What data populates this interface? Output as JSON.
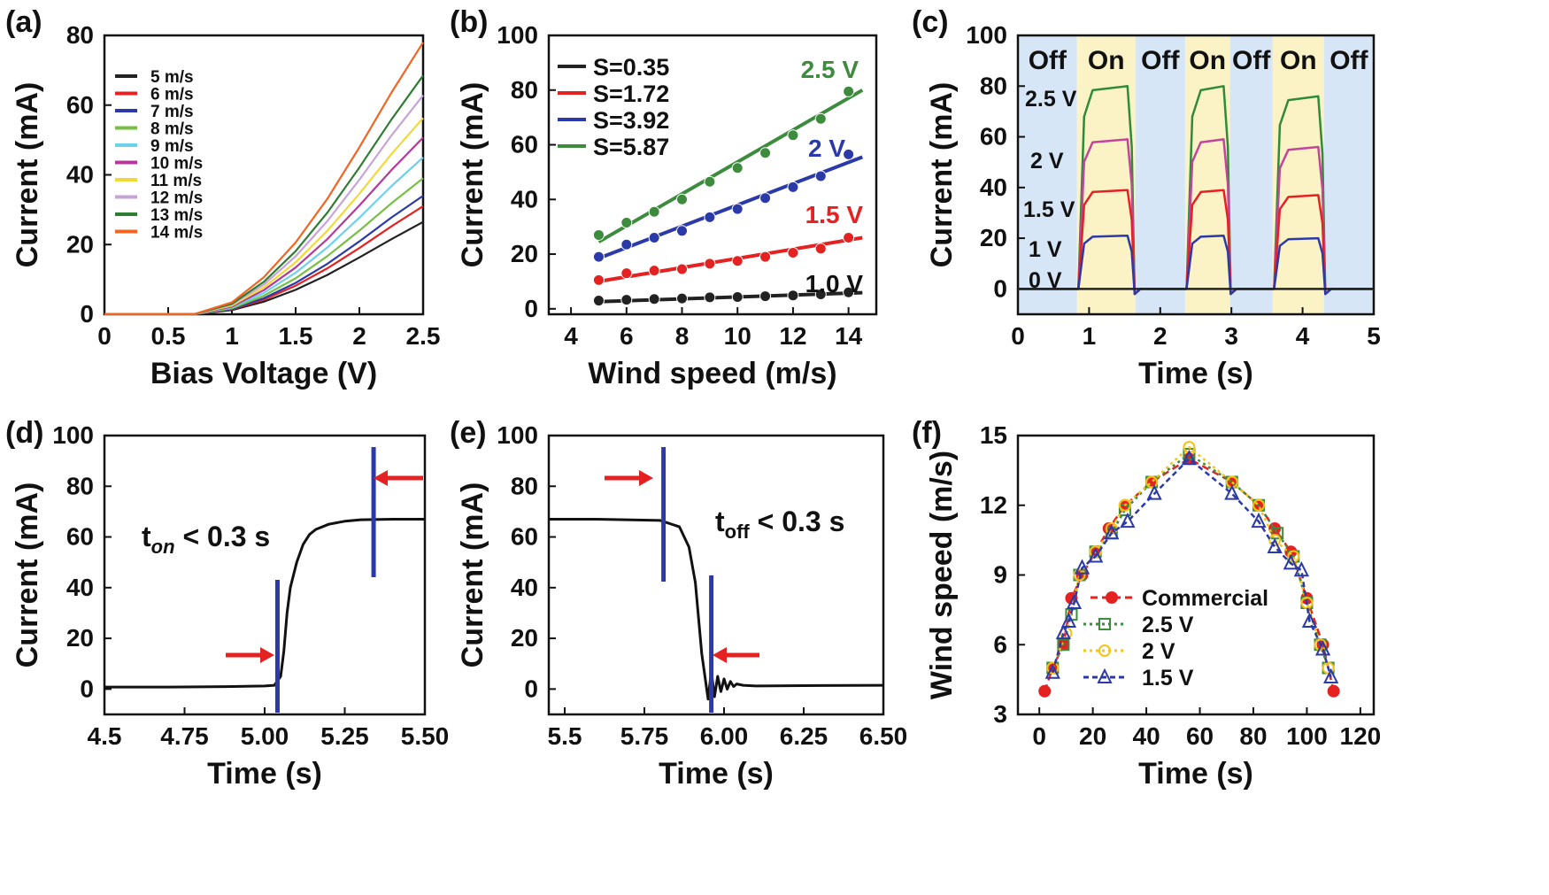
{
  "figure": {
    "panel_labels": [
      "(a)",
      "(b)",
      "(c)",
      "(d)",
      "(e)",
      "(f)"
    ]
  },
  "chart_data": [
    {
      "panel": "(a)",
      "type": "line",
      "xlabel": "Bias Voltage (V)",
      "ylabel": "Current (mA)",
      "xlim": [
        0,
        2.5
      ],
      "ylim": [
        0,
        80
      ],
      "xticks": [
        0,
        0.5,
        1,
        1.5,
        2,
        2.5
      ],
      "xtick_labels": [
        "0",
        "0.5",
        "1",
        "1.5",
        "2",
        "2.5"
      ],
      "yticks": [
        0,
        20,
        40,
        60,
        80
      ],
      "ytick_labels": [
        "0",
        "20",
        "40",
        "60",
        "80"
      ],
      "legend_position": "top-left",
      "turn_on_voltage": 0.7,
      "x": [
        0,
        0.5,
        0.7,
        1.0,
        1.25,
        1.5,
        1.75,
        2.0,
        2.25,
        2.5
      ],
      "series": [
        {
          "name": "5 m/s",
          "color": "#222222",
          "values": [
            0,
            0,
            0,
            1.2,
            3.6,
            7.0,
            11.3,
            16.3,
            21.5,
            26.5
          ]
        },
        {
          "name": "6 m/s",
          "color": "#e52222",
          "values": [
            0,
            0,
            0,
            1.4,
            4.2,
            8.2,
            13.2,
            19.0,
            25.2,
            31.0
          ]
        },
        {
          "name": "7 m/s",
          "color": "#2b3aa8",
          "values": [
            0,
            0,
            0,
            1.5,
            4.6,
            9.0,
            14.5,
            20.9,
            27.7,
            34.0
          ]
        },
        {
          "name": "8 m/s",
          "color": "#77c043",
          "values": [
            0,
            0,
            0,
            1.7,
            5.3,
            10.3,
            16.7,
            24.0,
            31.8,
            39.0
          ]
        },
        {
          "name": "9 m/s",
          "color": "#6fd0ea",
          "values": [
            0,
            0,
            0,
            2.0,
            6.1,
            11.9,
            19.2,
            27.7,
            36.7,
            45.0
          ]
        },
        {
          "name": "10 m/s",
          "color": "#b3399a",
          "values": [
            0,
            0,
            0,
            2.2,
            6.9,
            13.4,
            21.6,
            31.2,
            41.3,
            50.7
          ]
        },
        {
          "name": "11 m/s",
          "color": "#f2d93a",
          "values": [
            0,
            0,
            0,
            2.5,
            7.7,
            14.9,
            24.0,
            34.6,
            45.9,
            56.3
          ]
        },
        {
          "name": "12 m/s",
          "color": "#c6a4d8",
          "values": [
            0,
            0,
            0,
            2.8,
            8.5,
            16.6,
            26.8,
            38.6,
            51.2,
            62.8
          ]
        },
        {
          "name": "13 m/s",
          "color": "#2e7d32",
          "values": [
            0,
            0,
            0,
            3.0,
            9.3,
            18.1,
            29.2,
            42.1,
            55.8,
            68.5
          ]
        },
        {
          "name": "14 m/s",
          "color": "#f26522",
          "values": [
            0,
            0,
            0,
            3.4,
            10.6,
            20.6,
            33.2,
            47.9,
            63.5,
            78.0
          ]
        }
      ]
    },
    {
      "panel": "(b)",
      "type": "scatter",
      "xlabel": "Wind speed (m/s)",
      "ylabel": "Current (mA)",
      "xlim": [
        3.2,
        15
      ],
      "ylim": [
        -2,
        100
      ],
      "xticks": [
        4,
        6,
        8,
        10,
        12,
        14
      ],
      "xtick_labels": [
        "4",
        "6",
        "8",
        "10",
        "12",
        "14"
      ],
      "yticks": [
        0,
        20,
        40,
        60,
        80,
        100
      ],
      "ytick_labels": [
        "0",
        "20",
        "40",
        "60",
        "80",
        "100"
      ],
      "legend_position": "top-left",
      "x": [
        5,
        6,
        7,
        8,
        9,
        10,
        11,
        12,
        13,
        14
      ],
      "series": [
        {
          "name": "S=0.35",
          "label": "1.0 V",
          "color": "#222222",
          "values": [
            3.0,
            3.3,
            3.6,
            3.8,
            4.2,
            4.3,
            4.6,
            4.9,
            5.3,
            6.0
          ],
          "fit": [
            [
              5,
              2.6
            ],
            [
              14.5,
              5.9
            ]
          ]
        },
        {
          "name": "S=1.72",
          "label": "1.5 V",
          "color": "#e52222",
          "values": [
            10.5,
            13.0,
            14.0,
            14.5,
            16.5,
            17.5,
            19.0,
            20.5,
            22.0,
            26.0
          ],
          "fit": [
            [
              5,
              10.0
            ],
            [
              14.5,
              26.0
            ]
          ]
        },
        {
          "name": "S=3.92",
          "label": "2 V",
          "color": "#2b3aa8",
          "values": [
            19.0,
            23.5,
            26.0,
            28.5,
            33.5,
            36.5,
            40.5,
            44.5,
            48.5,
            56.5
          ],
          "fit": [
            [
              5,
              18.5
            ],
            [
              14.5,
              55.5
            ]
          ]
        },
        {
          "name": "S=5.87",
          "label": "2.5 V",
          "color": "#3d8b3d",
          "values": [
            27.0,
            31.5,
            35.5,
            40.0,
            46.5,
            51.5,
            57.0,
            63.5,
            69.5,
            79.5
          ],
          "fit": [
            [
              5,
              24.5
            ],
            [
              14.5,
              80.0
            ]
          ]
        }
      ]
    },
    {
      "panel": "(c)",
      "type": "line",
      "xlabel": "Time (s)",
      "ylabel": "Current (mA)",
      "xlim": [
        0,
        5
      ],
      "ylim": [
        -10,
        100
      ],
      "xticks": [
        0,
        1,
        2,
        3,
        4,
        5
      ],
      "xtick_labels": [
        "0",
        "1",
        "2",
        "3",
        "4",
        "5"
      ],
      "yticks": [
        0,
        20,
        40,
        60,
        80,
        100
      ],
      "ytick_labels": [
        "0",
        "20",
        "40",
        "60",
        "80",
        "100"
      ],
      "bands": [
        {
          "label": "Off",
          "from": 0,
          "to": 0.83,
          "color": "#d6e6f6"
        },
        {
          "label": "On",
          "from": 0.83,
          "to": 1.65,
          "color": "#fbf3c6"
        },
        {
          "label": "Off",
          "from": 1.65,
          "to": 2.35,
          "color": "#d6e6f6"
        },
        {
          "label": "On",
          "from": 2.35,
          "to": 2.98,
          "color": "#fbf3c6"
        },
        {
          "label": "Off",
          "from": 2.98,
          "to": 3.58,
          "color": "#d6e6f6"
        },
        {
          "label": "On",
          "from": 3.58,
          "to": 4.3,
          "color": "#fbf3c6"
        },
        {
          "label": "Off",
          "from": 4.3,
          "to": 5,
          "color": "#d6e6f6"
        }
      ],
      "pulses": [
        [
          0.85,
          1.6
        ],
        [
          2.37,
          2.95
        ],
        [
          3.6,
          4.28
        ]
      ],
      "series": [
        {
          "name": "2.5 V",
          "color": "#2e8b3a",
          "levels": [
            80,
            80,
            76
          ]
        },
        {
          "name": "2 V",
          "color": "#c2449b",
          "levels": [
            59,
            59,
            56
          ]
        },
        {
          "name": "1.5 V",
          "color": "#e52222",
          "levels": [
            39,
            39,
            37
          ]
        },
        {
          "name": "1 V",
          "color": "#2b3aa8",
          "levels": [
            21,
            21,
            20
          ]
        },
        {
          "name": "0 V",
          "color": "#222222",
          "levels": [
            0,
            0,
            0
          ]
        }
      ]
    },
    {
      "panel": "(d)",
      "type": "line",
      "xlabel": "Time (s)",
      "ylabel": "Current (mA)",
      "xlim": [
        4.5,
        5.5
      ],
      "ylim": [
        -10,
        100
      ],
      "xticks": [
        4.5,
        4.75,
        5.0,
        5.25,
        5.5
      ],
      "xtick_labels": [
        "4.5",
        "4.75",
        "5.00",
        "5.25",
        "5.50"
      ],
      "yticks": [
        0,
        20,
        40,
        60,
        80,
        100
      ],
      "ytick_labels": [
        "0",
        "20",
        "40",
        "60",
        "80",
        "100"
      ],
      "annotation": {
        "main": "t",
        "sub": "on",
        "rest": " < 0.3 s"
      },
      "markers": [
        5.04,
        5.34
      ],
      "x": [
        4.5,
        4.7,
        4.9,
        5.0,
        5.03,
        5.05,
        5.06,
        5.07,
        5.08,
        5.1,
        5.12,
        5.14,
        5.16,
        5.2,
        5.25,
        5.3,
        5.4,
        5.5
      ],
      "values": [
        0.8,
        0.8,
        1.0,
        1.2,
        1.5,
        5,
        15,
        30,
        40,
        50,
        57,
        61,
        63,
        65,
        66.2,
        66.8,
        67,
        67
      ]
    },
    {
      "panel": "(e)",
      "type": "line",
      "xlabel": "Time (s)",
      "ylabel": "Current (mA)",
      "xlim": [
        5.45,
        6.5
      ],
      "ylim": [
        -10,
        100
      ],
      "xticks": [
        5.5,
        5.75,
        6.0,
        6.25,
        6.5
      ],
      "xtick_labels": [
        "5.5",
        "5.75",
        "6.00",
        "6.25",
        "6.50"
      ],
      "yticks": [
        0,
        20,
        40,
        60,
        80,
        100
      ],
      "ytick_labels": [
        "0",
        "20",
        "40",
        "60",
        "80",
        "100"
      ],
      "annotation": {
        "main": "t",
        "sub": "off",
        "rest": " < 0.3 s"
      },
      "markers": [
        5.81,
        5.96
      ],
      "x": [
        5.45,
        5.6,
        5.8,
        5.86,
        5.89,
        5.91,
        5.92,
        5.93,
        5.94,
        5.95,
        5.96,
        5.97,
        5.98,
        5.99,
        6.0,
        6.01,
        6.02,
        6.03,
        6.04,
        6.06,
        6.1,
        6.3,
        6.5
      ],
      "values": [
        67,
        67,
        66.5,
        64,
        56,
        42,
        28,
        14,
        5,
        -4,
        7,
        -3,
        5,
        -1,
        4,
        0,
        3,
        1,
        2,
        1.5,
        1.2,
        1.4,
        1.5
      ]
    },
    {
      "panel": "(f)",
      "type": "scatter",
      "xlabel": "Time (s)",
      "ylabel": "Wind speed (m/s)",
      "xlim": [
        -8,
        125
      ],
      "ylim": [
        3,
        15
      ],
      "xticks": [
        0,
        20,
        40,
        60,
        80,
        100,
        120
      ],
      "xtick_labels": [
        "0",
        "20",
        "40",
        "60",
        "80",
        "100",
        "120"
      ],
      "yticks": [
        3,
        6,
        9,
        12,
        15
      ],
      "ytick_labels": [
        "3",
        "6",
        "9",
        "12",
        "15"
      ],
      "legend_position": "bottom-center",
      "series": [
        {
          "name": "Commercial",
          "color": "#e52222",
          "marker": "circle-filled",
          "dash": "8,5",
          "x": [
            2,
            5,
            9,
            12,
            16,
            21,
            26,
            32,
            42,
            56,
            72,
            82,
            88,
            94,
            100,
            106,
            110
          ],
          "y": [
            4,
            5,
            6,
            8,
            9,
            10,
            11,
            12,
            13,
            14,
            13,
            12,
            11,
            10,
            8,
            6,
            4
          ]
        },
        {
          "name": "2.5 V",
          "color": "#3d8b3d",
          "marker": "square",
          "dash": "3,4",
          "x": [
            5,
            9,
            12,
            15,
            21,
            27,
            32,
            42,
            56,
            72,
            82,
            89,
            95,
            100,
            105,
            108
          ],
          "y": [
            5,
            6,
            7.3,
            9,
            10,
            10.8,
            11.8,
            13,
            14.2,
            13,
            12,
            10.8,
            9.8,
            7.8,
            6,
            5
          ]
        },
        {
          "name": "2 V",
          "color": "#f2c417",
          "marker": "circle-open",
          "dash": "3,4",
          "x": [
            5,
            10,
            15,
            21,
            27,
            32,
            42,
            56,
            72,
            82,
            88,
            95,
            100,
            105,
            108
          ],
          "y": [
            5,
            6.5,
            9,
            10,
            11,
            12,
            13,
            14.5,
            13,
            12,
            10.5,
            9.8,
            7.8,
            6,
            5
          ]
        },
        {
          "name": "1.5 V",
          "color": "#2b3aa8",
          "marker": "triangle-open",
          "dash": "6,4",
          "x": [
            5,
            9,
            11,
            13,
            16,
            21,
            27,
            33,
            43,
            56,
            72,
            82,
            88,
            94,
            98,
            101,
            106,
            109
          ],
          "y": [
            4.8,
            6.5,
            7,
            7.8,
            9.3,
            9.8,
            10.8,
            11.3,
            12.5,
            14,
            12.5,
            11.3,
            10.2,
            9.5,
            9.2,
            7,
            5.8,
            4.6
          ]
        }
      ]
    }
  ]
}
